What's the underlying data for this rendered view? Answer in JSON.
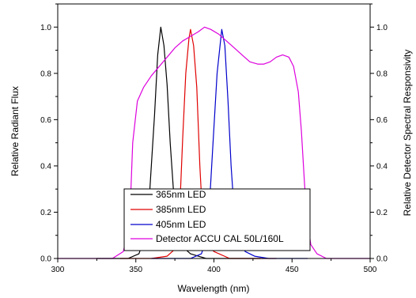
{
  "chart_data": {
    "type": "line",
    "xlabel": "Wavelength (nm)",
    "ylabel": "Relative Radiant Flux",
    "y2label": "Relative Detector Spectral Responsivity",
    "xlim": [
      300,
      500
    ],
    "ylim": [
      0.0,
      1.1
    ],
    "y2lim": [
      0.0,
      1.1
    ],
    "x_ticks": [
      300,
      350,
      400,
      450,
      500
    ],
    "y_ticks": [
      0.0,
      0.2,
      0.4,
      0.6,
      0.8,
      1.0
    ],
    "y_tick_labels": [
      "0.0",
      "0.2",
      "0.4",
      "0.6",
      "0.8",
      "1.0"
    ],
    "y2_ticks": [
      0.0,
      0.2,
      0.4,
      0.6,
      0.8,
      1.0
    ],
    "y2_tick_labels": [
      "0.0",
      "0.2",
      "0.4",
      "0.6",
      "0.8",
      "1.0"
    ],
    "grid": false,
    "legend_position": "bottom-center",
    "series": [
      {
        "name": "365nm LED",
        "color": "#000000",
        "points": [
          [
            325,
            0.0
          ],
          [
            345,
            0.0
          ],
          [
            352,
            0.02
          ],
          [
            356,
            0.1
          ],
          [
            359,
            0.3
          ],
          [
            362,
            0.62
          ],
          [
            364,
            0.88
          ],
          [
            366,
            1.0
          ],
          [
            368,
            0.92
          ],
          [
            370,
            0.75
          ],
          [
            372,
            0.5
          ],
          [
            374,
            0.3
          ],
          [
            376,
            0.15
          ],
          [
            380,
            0.05
          ],
          [
            385,
            0.02
          ],
          [
            395,
            0.0
          ],
          [
            430,
            0.0
          ]
        ]
      },
      {
        "name": "385nm LED",
        "color": "#e00000",
        "points": [
          [
            340,
            0.0
          ],
          [
            360,
            0.0
          ],
          [
            370,
            0.01
          ],
          [
            375,
            0.04
          ],
          [
            378,
            0.2
          ],
          [
            380,
            0.52
          ],
          [
            382,
            0.8
          ],
          [
            384,
            0.95
          ],
          [
            385,
            0.99
          ],
          [
            387,
            0.92
          ],
          [
            389,
            0.74
          ],
          [
            391,
            0.4
          ],
          [
            393,
            0.14
          ],
          [
            396,
            0.06
          ],
          [
            400,
            0.03
          ],
          [
            410,
            0.0
          ],
          [
            440,
            0.0
          ]
        ]
      },
      {
        "name": "405nm LED",
        "color": "#0000cc",
        "points": [
          [
            360,
            0.0
          ],
          [
            385,
            0.0
          ],
          [
            392,
            0.02
          ],
          [
            396,
            0.1
          ],
          [
            399,
            0.45
          ],
          [
            402,
            0.8
          ],
          [
            405,
            0.99
          ],
          [
            407,
            0.92
          ],
          [
            409,
            0.68
          ],
          [
            411,
            0.4
          ],
          [
            413,
            0.2
          ],
          [
            416,
            0.08
          ],
          [
            420,
            0.03
          ],
          [
            426,
            0.01
          ],
          [
            435,
            0.0
          ],
          [
            460,
            0.0
          ]
        ]
      },
      {
        "name": "Detector ACCU CAL 50L/160L",
        "color": "#dd00dd",
        "points": [
          [
            300,
            0.0
          ],
          [
            335,
            0.0
          ],
          [
            342,
            0.03
          ],
          [
            346,
            0.15
          ],
          [
            348,
            0.5
          ],
          [
            351,
            0.68
          ],
          [
            355,
            0.74
          ],
          [
            360,
            0.79
          ],
          [
            365,
            0.83
          ],
          [
            370,
            0.87
          ],
          [
            375,
            0.91
          ],
          [
            380,
            0.94
          ],
          [
            385,
            0.96
          ],
          [
            390,
            0.98
          ],
          [
            394,
            1.0
          ],
          [
            398,
            0.99
          ],
          [
            403,
            0.97
          ],
          [
            408,
            0.94
          ],
          [
            413,
            0.91
          ],
          [
            418,
            0.88
          ],
          [
            423,
            0.85
          ],
          [
            428,
            0.84
          ],
          [
            432,
            0.84
          ],
          [
            436,
            0.85
          ],
          [
            440,
            0.87
          ],
          [
            444,
            0.88
          ],
          [
            448,
            0.87
          ],
          [
            451,
            0.83
          ],
          [
            454,
            0.72
          ],
          [
            456,
            0.55
          ],
          [
            458,
            0.32
          ],
          [
            460,
            0.15
          ],
          [
            462,
            0.06
          ],
          [
            466,
            0.02
          ],
          [
            472,
            0.0
          ],
          [
            500,
            0.0
          ]
        ]
      }
    ]
  }
}
